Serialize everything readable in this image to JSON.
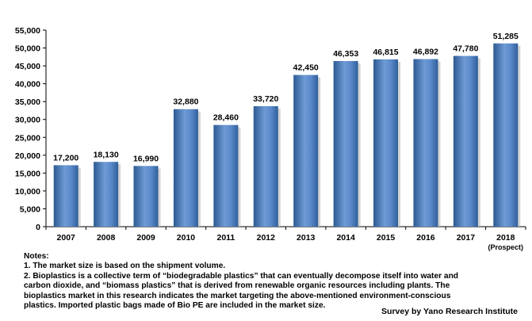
{
  "chart_data": {
    "type": "bar",
    "categories": [
      "2007",
      "2008",
      "2009",
      "2010",
      "2011",
      "2012",
      "2013",
      "2014",
      "2015",
      "2016",
      "2017",
      "2018"
    ],
    "category_sublabels": [
      "",
      "",
      "",
      "",
      "",
      "",
      "",
      "",
      "",
      "",
      "",
      "(Prospect)"
    ],
    "values": [
      17200,
      18130,
      16990,
      32880,
      28460,
      33720,
      42450,
      46353,
      46815,
      46892,
      47780,
      51285
    ],
    "value_labels": [
      "17,200",
      "18,130",
      "16,990",
      "32,880",
      "28,460",
      "33,720",
      "42,450",
      "46,353",
      "46,815",
      "46,892",
      "47,780",
      "51,285"
    ],
    "yticks": [
      "0",
      "5,000",
      "10,000",
      "15,000",
      "20,000",
      "25,000",
      "30,000",
      "35,000",
      "40,000",
      "45,000",
      "50,000",
      "55,000"
    ],
    "ylim": [
      0,
      55000
    ],
    "grid": false,
    "bar_color": "#4f81bd",
    "bar_color_dark": "#2c5a92",
    "bar_color_light": "#9cbde6"
  },
  "notes": {
    "heading": "Notes:",
    "lines": [
      "1. The market size is based on  the shipment volume.",
      "2. Bioplastics is a collective term of “biodegradable plastics” that can eventually decompose itself into water and",
      "carbon dioxide, and “biomass plastics” that is derived from renewable organic resources including plants. The",
      "bioplastics market in this research indicates the market targeting the above-mentioned environment-conscious",
      "plastics.  Imported plastic bags made of Bio PE are included in the market size."
    ]
  },
  "source": "Survey by Yano Research Institute"
}
